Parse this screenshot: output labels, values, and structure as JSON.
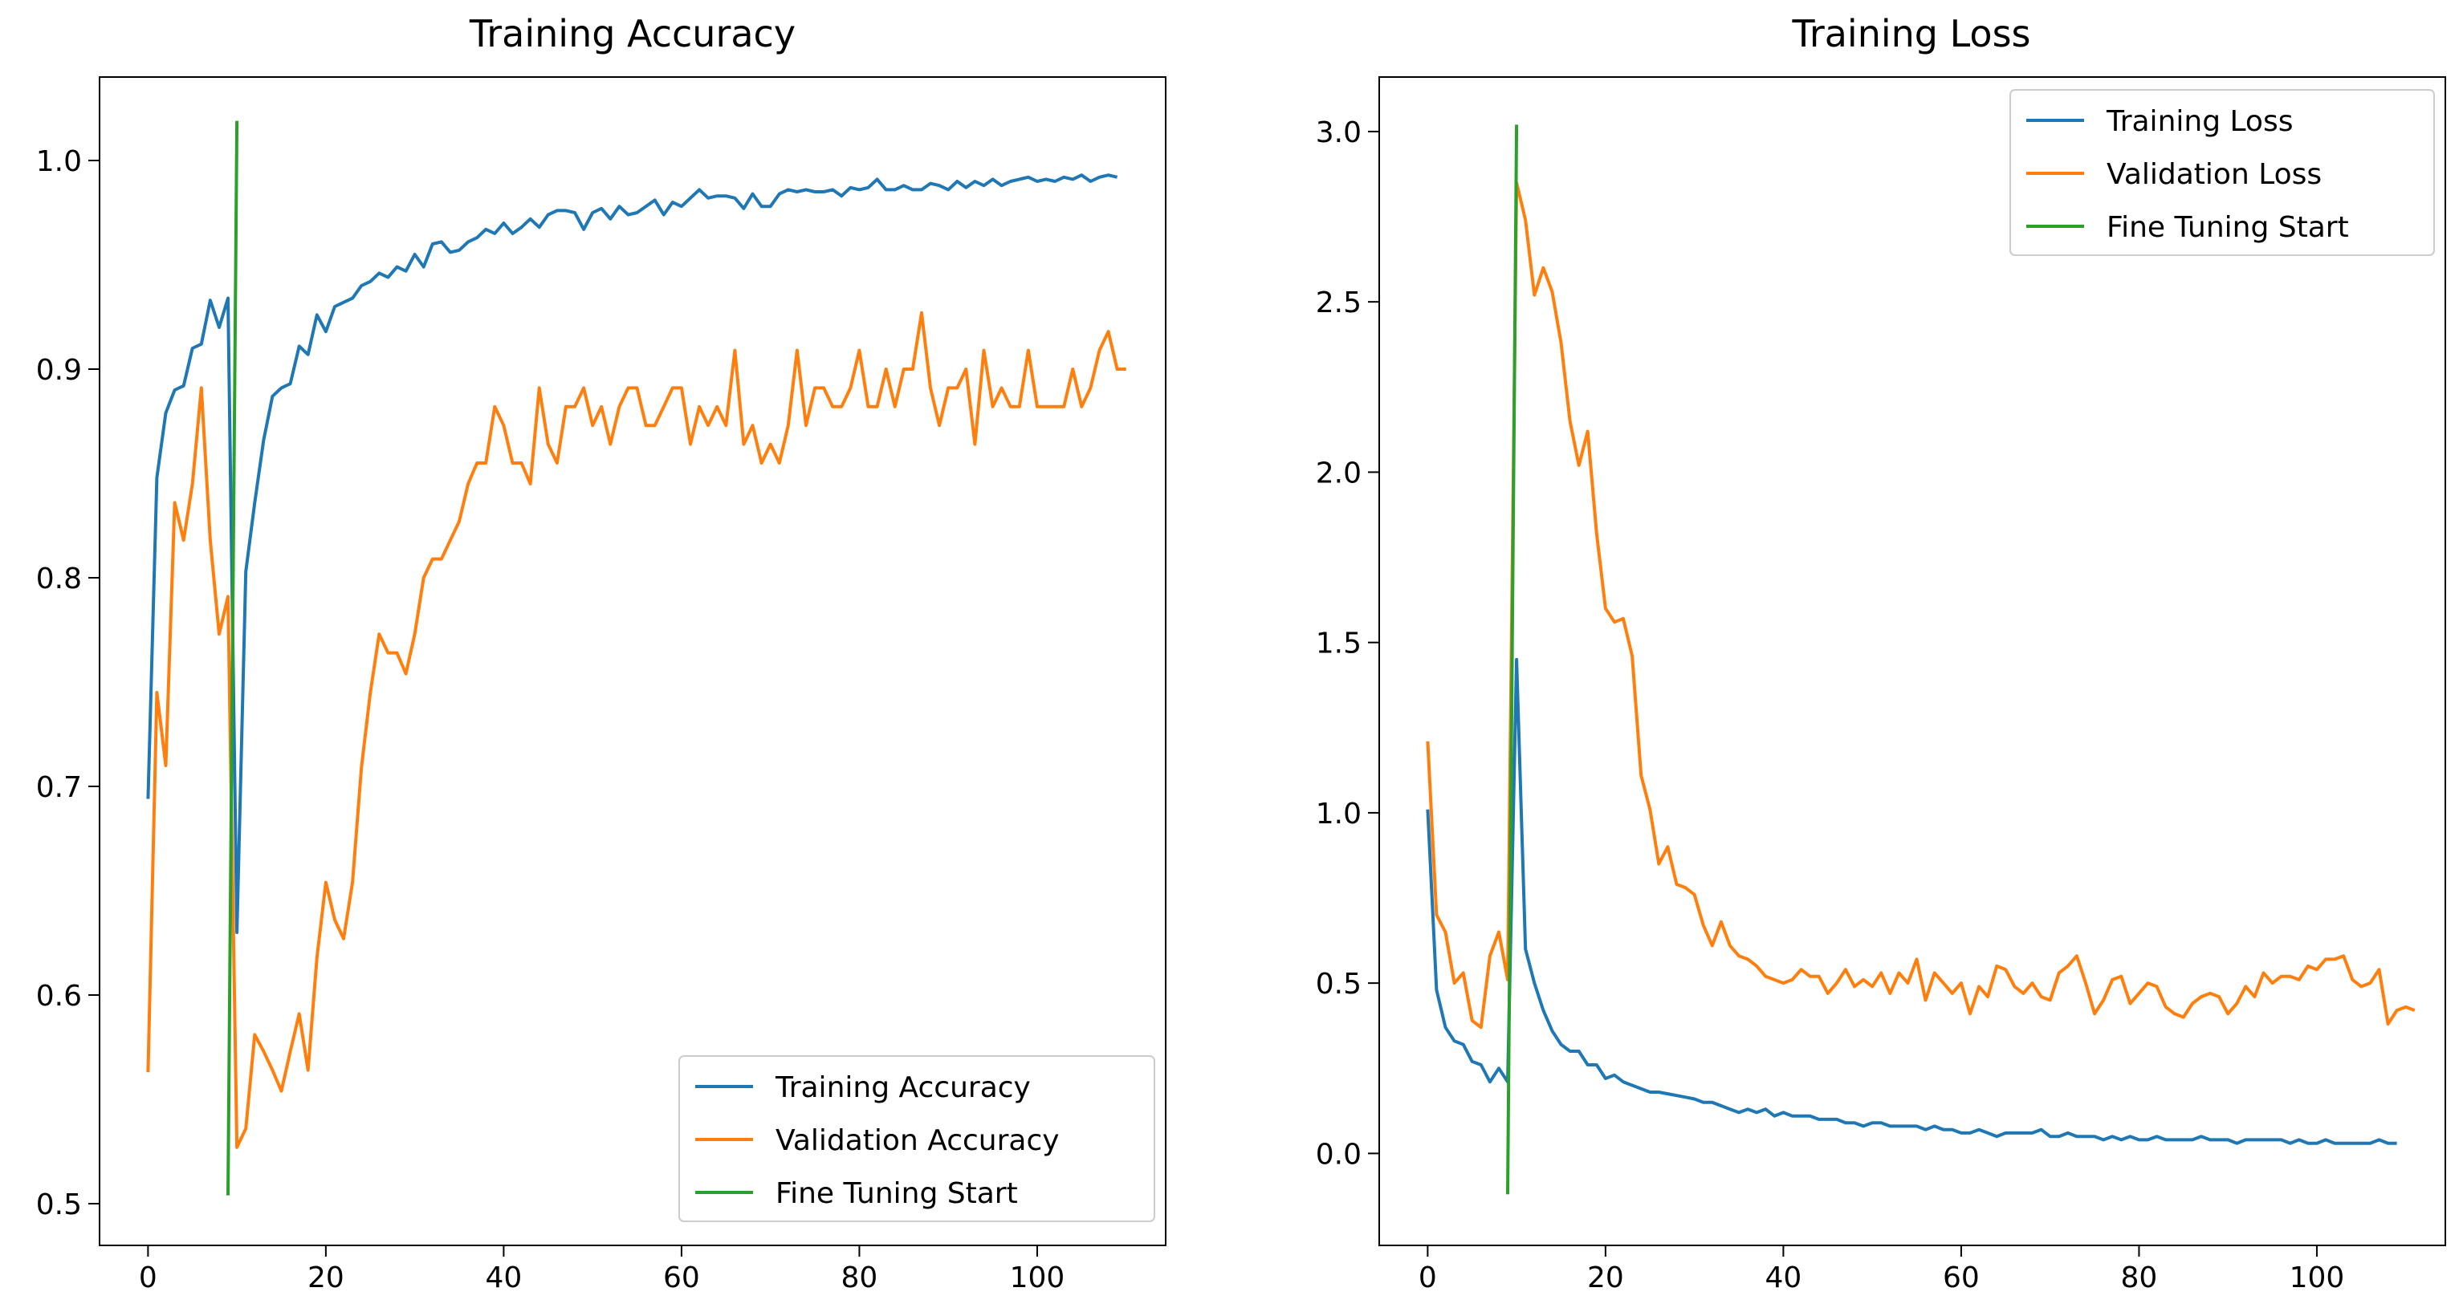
{
  "chart_data": [
    {
      "type": "line",
      "title": "Training Accuracy",
      "xlabel": "",
      "ylabel": "",
      "xlim": [
        -5.45,
        114.45
      ],
      "ylim": [
        0.48,
        1.04
      ],
      "xticks": [
        0,
        20,
        40,
        60,
        80,
        100
      ],
      "xtick_labels": [
        "0",
        "20",
        "40",
        "60",
        "80",
        "100"
      ],
      "yticks": [
        0.5,
        0.6,
        0.7,
        0.8,
        0.9,
        1.0
      ],
      "ytick_labels": [
        "0.5",
        "0.6",
        "0.7",
        "0.8",
        "0.9",
        "1.0"
      ],
      "grid": false,
      "legend_position": "lower-right",
      "series": [
        {
          "name": "Training Accuracy",
          "color": "#1f77b4",
          "x_start": 0,
          "values": [
            0.694,
            0.848,
            0.879,
            0.89,
            0.892,
            0.91,
            0.912,
            0.933,
            0.92,
            0.934,
            0.63,
            0.803,
            0.836,
            0.866,
            0.887,
            0.891,
            0.893,
            0.911,
            0.907,
            0.926,
            0.918,
            0.93,
            0.932,
            0.934,
            0.94,
            0.942,
            0.946,
            0.944,
            0.949,
            0.947,
            0.955,
            0.949,
            0.96,
            0.961,
            0.956,
            0.957,
            0.961,
            0.963,
            0.967,
            0.965,
            0.97,
            0.965,
            0.968,
            0.972,
            0.968,
            0.974,
            0.976,
            0.976,
            0.975,
            0.967,
            0.975,
            0.977,
            0.972,
            0.978,
            0.974,
            0.975,
            0.978,
            0.981,
            0.974,
            0.98,
            0.978,
            0.982,
            0.986,
            0.982,
            0.983,
            0.983,
            0.982,
            0.977,
            0.984,
            0.978,
            0.978,
            0.984,
            0.986,
            0.985,
            0.986,
            0.985,
            0.985,
            0.986,
            0.983,
            0.987,
            0.986,
            0.987,
            0.991,
            0.986,
            0.986,
            0.988,
            0.986,
            0.986,
            0.989,
            0.988,
            0.986,
            0.99,
            0.987,
            0.99,
            0.988,
            0.991,
            0.988,
            0.99,
            0.991,
            0.992,
            0.99,
            0.991,
            0.99,
            0.992,
            0.991,
            0.993,
            0.99,
            0.992,
            0.993,
            0.992
          ]
        },
        {
          "name": "Validation Accuracy",
          "color": "#ff7f0e",
          "x_start": 0,
          "values": [
            0.563,
            0.745,
            0.71,
            0.836,
            0.818,
            0.845,
            0.891,
            0.818,
            0.773,
            0.791,
            0.527,
            0.536,
            0.581,
            0.573,
            0.564,
            0.554,
            0.573,
            0.591,
            0.564,
            0.618,
            0.654,
            0.636,
            0.627,
            0.654,
            0.709,
            0.745,
            0.773,
            0.764,
            0.764,
            0.754,
            0.773,
            0.8,
            0.809,
            0.809,
            0.818,
            0.827,
            0.845,
            0.855,
            0.855,
            0.882,
            0.873,
            0.855,
            0.855,
            0.845,
            0.891,
            0.864,
            0.855,
            0.882,
            0.882,
            0.891,
            0.873,
            0.882,
            0.864,
            0.882,
            0.891,
            0.891,
            0.873,
            0.873,
            0.882,
            0.891,
            0.891,
            0.864,
            0.882,
            0.873,
            0.882,
            0.873,
            0.909,
            0.864,
            0.873,
            0.855,
            0.864,
            0.855,
            0.873,
            0.909,
            0.873,
            0.891,
            0.891,
            0.882,
            0.882,
            0.891,
            0.909,
            0.882,
            0.882,
            0.9,
            0.882,
            0.9,
            0.9,
            0.927,
            0.891,
            0.873,
            0.891,
            0.891,
            0.9,
            0.864,
            0.909,
            0.882,
            0.891,
            0.882,
            0.882,
            0.909,
            0.882,
            0.882,
            0.882,
            0.882,
            0.9,
            0.882,
            0.891,
            0.909,
            0.918,
            0.9,
            0.9
          ]
        },
        {
          "name": "Fine Tuning Start",
          "color": "#2ca02c",
          "points": [
            [
              9,
              0.504
            ],
            [
              10,
              1.019
            ]
          ]
        }
      ]
    },
    {
      "type": "line",
      "title": "Training Loss",
      "xlabel": "",
      "ylabel": "",
      "xlim": [
        -5.45,
        114.45
      ],
      "ylim": [
        -0.27,
        3.16
      ],
      "xticks": [
        0,
        20,
        40,
        60,
        80,
        100
      ],
      "xtick_labels": [
        "0",
        "20",
        "40",
        "60",
        "80",
        "100"
      ],
      "yticks": [
        0.0,
        0.5,
        1.0,
        1.5,
        2.0,
        2.5,
        3.0
      ],
      "ytick_labels": [
        "0.0",
        "0.5",
        "1.0",
        "1.5",
        "2.0",
        "2.5",
        "3.0"
      ],
      "grid": false,
      "legend_position": "upper-right",
      "series": [
        {
          "name": "Training Loss",
          "color": "#1f77b4",
          "x_start": 0,
          "values": [
            1.01,
            0.48,
            0.37,
            0.33,
            0.32,
            0.27,
            0.26,
            0.21,
            0.25,
            0.21,
            1.45,
            0.6,
            0.5,
            0.42,
            0.36,
            0.32,
            0.3,
            0.3,
            0.26,
            0.26,
            0.22,
            0.23,
            0.21,
            0.2,
            0.19,
            0.18,
            0.18,
            0.175,
            0.17,
            0.165,
            0.16,
            0.15,
            0.15,
            0.14,
            0.13,
            0.12,
            0.13,
            0.12,
            0.13,
            0.11,
            0.12,
            0.11,
            0.11,
            0.11,
            0.1,
            0.1,
            0.1,
            0.09,
            0.09,
            0.08,
            0.09,
            0.09,
            0.08,
            0.08,
            0.08,
            0.08,
            0.07,
            0.08,
            0.07,
            0.07,
            0.06,
            0.06,
            0.07,
            0.06,
            0.05,
            0.06,
            0.06,
            0.06,
            0.06,
            0.07,
            0.05,
            0.05,
            0.06,
            0.05,
            0.05,
            0.05,
            0.04,
            0.05,
            0.04,
            0.05,
            0.04,
            0.04,
            0.05,
            0.04,
            0.04,
            0.04,
            0.04,
            0.05,
            0.04,
            0.04,
            0.04,
            0.03,
            0.04,
            0.04,
            0.04,
            0.04,
            0.04,
            0.03,
            0.04,
            0.03,
            0.03,
            0.04,
            0.03,
            0.03,
            0.03,
            0.03,
            0.03,
            0.04,
            0.03,
            0.03
          ]
        },
        {
          "name": "Validation Loss",
          "color": "#ff7f0e",
          "x_start": 0,
          "values": [
            1.21,
            0.7,
            0.65,
            0.5,
            0.53,
            0.39,
            0.37,
            0.58,
            0.65,
            0.51,
            2.85,
            2.74,
            2.52,
            2.6,
            2.53,
            2.38,
            2.15,
            2.02,
            2.12,
            1.82,
            1.6,
            1.56,
            1.57,
            1.46,
            1.11,
            1.01,
            0.85,
            0.9,
            0.79,
            0.78,
            0.76,
            0.67,
            0.61,
            0.68,
            0.61,
            0.58,
            0.57,
            0.55,
            0.52,
            0.51,
            0.5,
            0.51,
            0.54,
            0.52,
            0.52,
            0.47,
            0.5,
            0.54,
            0.49,
            0.51,
            0.49,
            0.53,
            0.47,
            0.53,
            0.5,
            0.57,
            0.45,
            0.53,
            0.5,
            0.47,
            0.5,
            0.41,
            0.49,
            0.46,
            0.55,
            0.54,
            0.49,
            0.47,
            0.5,
            0.46,
            0.45,
            0.53,
            0.55,
            0.58,
            0.5,
            0.41,
            0.45,
            0.51,
            0.52,
            0.44,
            0.47,
            0.5,
            0.49,
            0.43,
            0.41,
            0.4,
            0.44,
            0.46,
            0.47,
            0.46,
            0.41,
            0.44,
            0.49,
            0.46,
            0.53,
            0.5,
            0.52,
            0.52,
            0.51,
            0.55,
            0.54,
            0.57,
            0.57,
            0.58,
            0.51,
            0.49,
            0.5,
            0.54,
            0.38,
            0.42,
            0.43,
            0.42
          ]
        },
        {
          "name": "Fine Tuning Start",
          "color": "#2ca02c",
          "points": [
            [
              9,
              -0.12
            ],
            [
              10,
              3.02
            ]
          ]
        }
      ]
    }
  ]
}
